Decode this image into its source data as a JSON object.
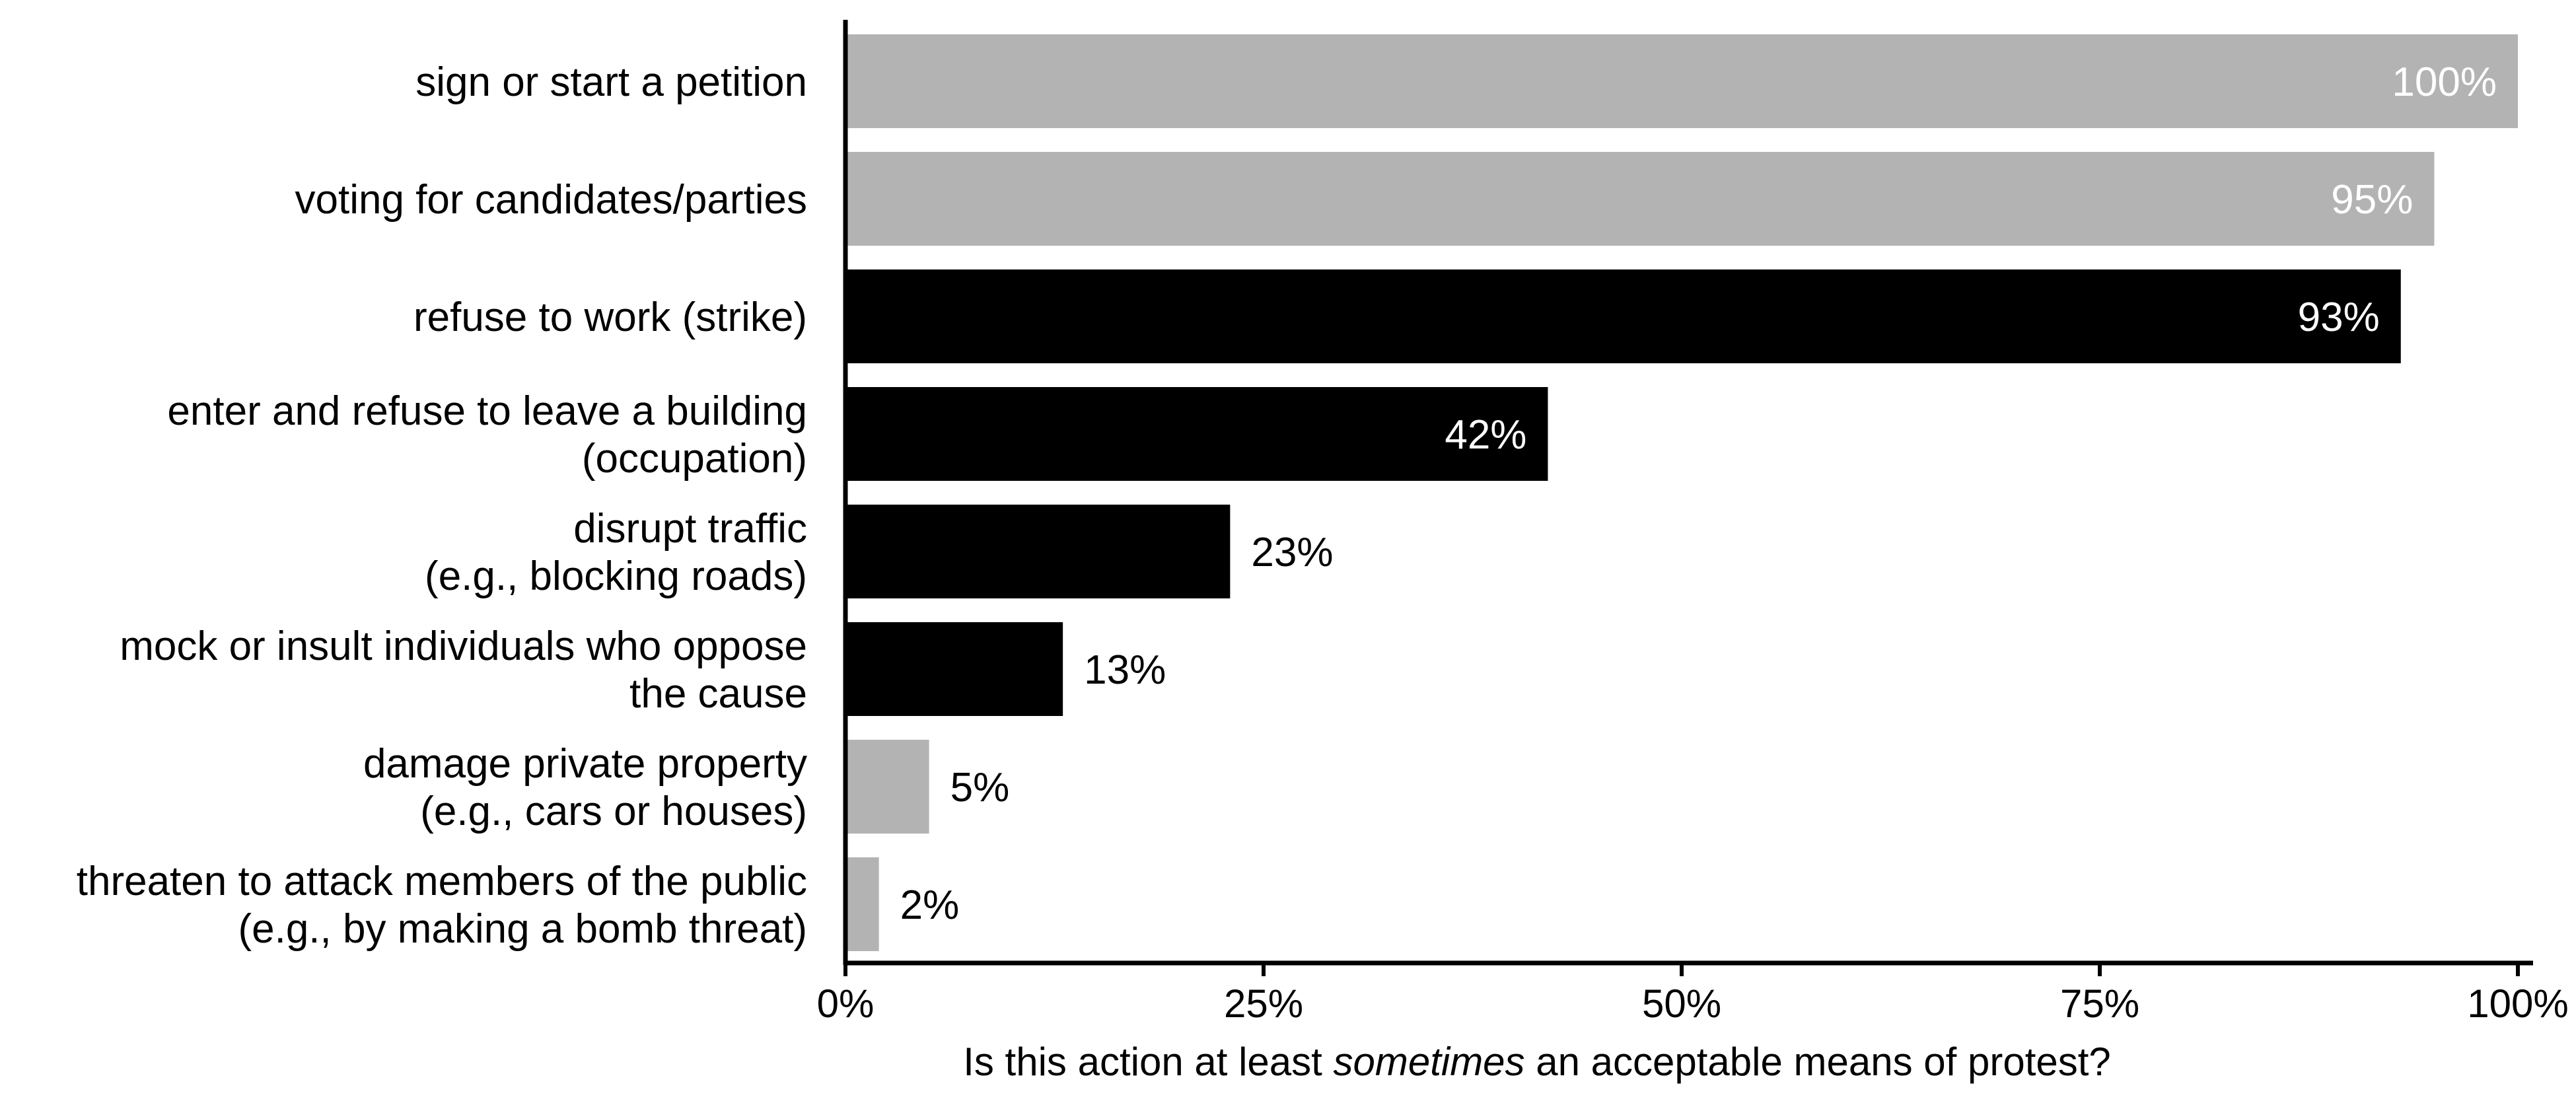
{
  "chart_data": {
    "type": "bar",
    "orientation": "horizontal",
    "categories": [
      [
        "sign or start a petition"
      ],
      [
        "voting for candidates/parties"
      ],
      [
        "refuse to work (strike)"
      ],
      [
        "enter and refuse to leave a building",
        "(occupation)"
      ],
      [
        "disrupt traffic",
        "(e.g., blocking roads)"
      ],
      [
        "mock or insult individuals who oppose",
        "the cause"
      ],
      [
        "damage private property",
        "(e.g., cars or houses)"
      ],
      [
        "threaten to attack members of the public",
        "(e.g., by making a bomb threat)"
      ]
    ],
    "values": [
      100,
      95,
      93,
      42,
      23,
      13,
      5,
      2
    ],
    "value_labels": [
      "100%",
      "95%",
      "93%",
      "42%",
      "23%",
      "13%",
      "5%",
      "2%"
    ],
    "bar_colors": [
      "#b3b3b3",
      "#b3b3b3",
      "#000000",
      "#000000",
      "#000000",
      "#000000",
      "#b3b3b3",
      "#b3b3b3"
    ],
    "x_ticks": [
      0,
      25,
      50,
      75,
      100
    ],
    "x_tick_labels": [
      "0%",
      "25%",
      "50%",
      "75%",
      "100%"
    ],
    "xlim": [
      0,
      100
    ],
    "xlabel": {
      "before": "Is this action at least ",
      "emphasis": "sometimes",
      "after": " an acceptable means of protest?"
    },
    "grid": false,
    "legend": "none"
  }
}
